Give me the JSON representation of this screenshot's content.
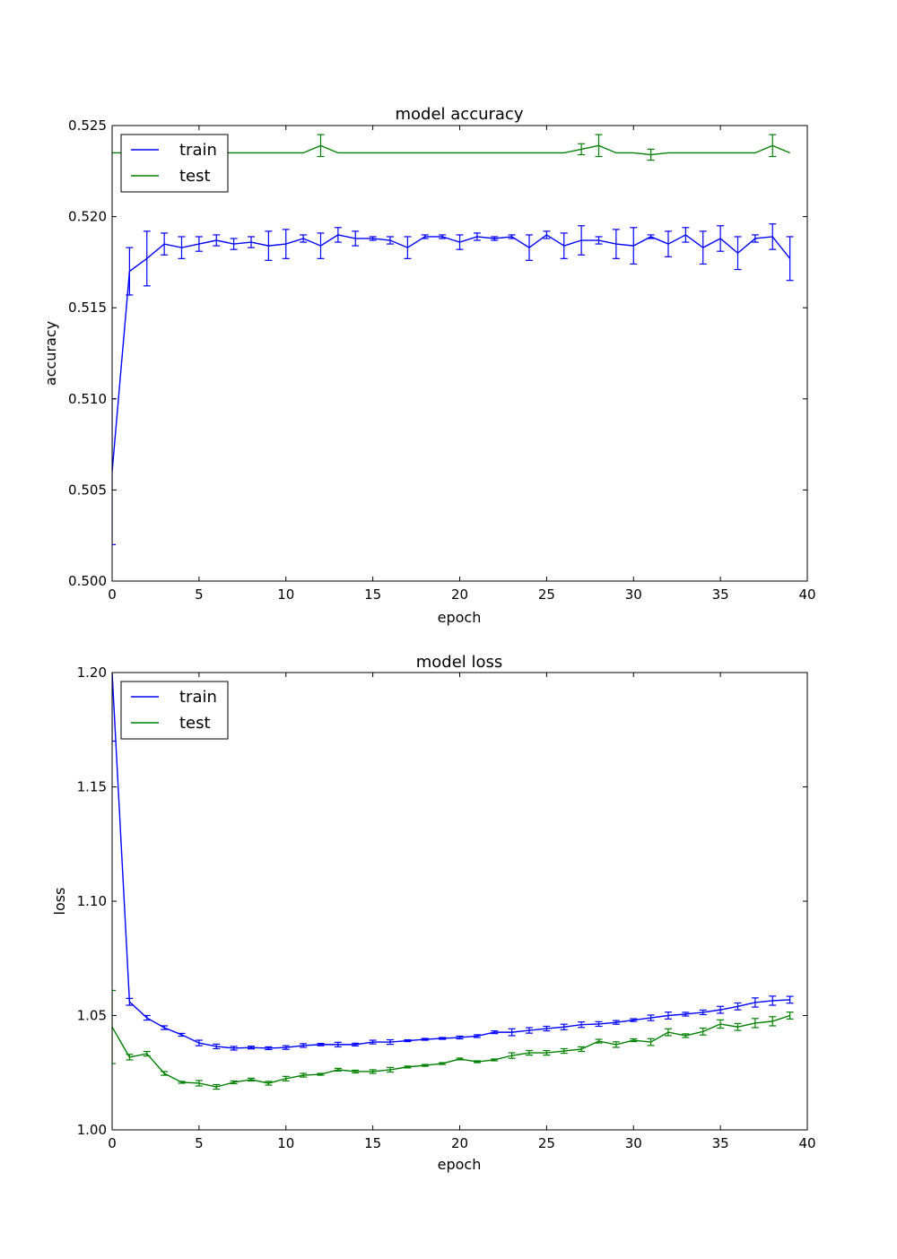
{
  "chart_data": [
    {
      "type": "line",
      "title": "model accuracy",
      "xlabel": "epoch",
      "ylabel": "accuracy",
      "xlim": [
        0,
        40
      ],
      "ylim": [
        0.5,
        0.525
      ],
      "xticks": [
        0,
        5,
        10,
        15,
        20,
        25,
        30,
        35,
        40
      ],
      "yticks": [
        0.5,
        0.505,
        0.51,
        0.515,
        0.52,
        0.525
      ],
      "ytick_labels": [
        "0.500",
        "0.505",
        "0.510",
        "0.515",
        "0.520",
        "0.525"
      ],
      "grid": false,
      "legend_position": "top-left",
      "error_bars": true,
      "series": [
        {
          "name": "train",
          "color": "#0000ff",
          "x": [
            0,
            1,
            2,
            3,
            4,
            5,
            6,
            7,
            8,
            9,
            10,
            11,
            12,
            13,
            14,
            15,
            16,
            17,
            18,
            19,
            20,
            21,
            22,
            23,
            24,
            25,
            26,
            27,
            28,
            29,
            30,
            31,
            32,
            33,
            34,
            35,
            36,
            37,
            38,
            39
          ],
          "values": [
            0.506,
            0.517,
            0.5177,
            0.5185,
            0.5183,
            0.5185,
            0.5187,
            0.5185,
            0.5186,
            0.5184,
            0.5185,
            0.5188,
            0.5184,
            0.519,
            0.5188,
            0.5188,
            0.5187,
            0.5183,
            0.5189,
            0.5189,
            0.5186,
            0.5189,
            0.5188,
            0.5189,
            0.5183,
            0.519,
            0.5184,
            0.5187,
            0.5187,
            0.5185,
            0.5184,
            0.5189,
            0.5185,
            0.519,
            0.5183,
            0.5188,
            0.518,
            0.5188,
            0.5189,
            0.5177
          ],
          "errors": [
            0.004,
            0.0013,
            0.0015,
            0.0006,
            0.0006,
            0.0004,
            0.0003,
            0.0003,
            0.0003,
            0.0008,
            0.0008,
            0.0002,
            0.0007,
            0.0004,
            0.0004,
            0.0001,
            0.0002,
            0.0006,
            0.0001,
            0.0001,
            0.0004,
            0.0002,
            0.0001,
            0.0001,
            0.0007,
            0.0002,
            0.0007,
            0.0008,
            0.0002,
            0.0008,
            0.001,
            0.0001,
            0.0007,
            0.0004,
            0.0009,
            0.0007,
            0.0009,
            0.0002,
            0.0007,
            0.0012
          ]
        },
        {
          "name": "test",
          "color": "#008000",
          "x": [
            0,
            1,
            2,
            3,
            4,
            5,
            6,
            7,
            8,
            9,
            10,
            11,
            12,
            13,
            14,
            15,
            16,
            17,
            18,
            19,
            20,
            21,
            22,
            23,
            24,
            25,
            26,
            27,
            28,
            29,
            30,
            31,
            32,
            33,
            34,
            35,
            36,
            37,
            38,
            39
          ],
          "values": [
            0.5235,
            0.5235,
            0.5235,
            0.5235,
            0.5235,
            0.5235,
            0.5235,
            0.5235,
            0.5235,
            0.5235,
            0.5235,
            0.5235,
            0.5239,
            0.5235,
            0.5235,
            0.5235,
            0.5235,
            0.5235,
            0.5235,
            0.5235,
            0.5235,
            0.5235,
            0.5235,
            0.5235,
            0.5235,
            0.5235,
            0.5235,
            0.5237,
            0.5239,
            0.5235,
            0.5235,
            0.5234,
            0.5235,
            0.5235,
            0.5235,
            0.5235,
            0.5235,
            0.5235,
            0.5239,
            0.5235
          ],
          "errors": [
            0,
            0,
            0,
            0,
            0,
            0,
            0,
            0,
            0,
            0,
            0,
            0,
            0.0006,
            0,
            0,
            0,
            0,
            0,
            0,
            0,
            0,
            0,
            0,
            0,
            0,
            0,
            0,
            0.0003,
            0.0006,
            0,
            0,
            0.0003,
            0,
            0,
            0,
            0,
            0,
            0,
            0.0006,
            0
          ]
        }
      ]
    },
    {
      "type": "line",
      "title": "model loss",
      "xlabel": "epoch",
      "ylabel": "loss",
      "xlim": [
        0,
        40
      ],
      "ylim": [
        1.0,
        1.2
      ],
      "xticks": [
        0,
        5,
        10,
        15,
        20,
        25,
        30,
        35,
        40
      ],
      "yticks": [
        1.0,
        1.05,
        1.1,
        1.15,
        1.2
      ],
      "ytick_labels": [
        "1.00",
        "1.05",
        "1.10",
        "1.15",
        "1.20"
      ],
      "grid": false,
      "legend_position": "top-left",
      "error_bars": true,
      "series": [
        {
          "name": "train",
          "color": "#0000ff",
          "x": [
            0,
            1,
            2,
            3,
            4,
            5,
            6,
            7,
            8,
            9,
            10,
            11,
            12,
            13,
            14,
            15,
            16,
            17,
            18,
            19,
            20,
            21,
            22,
            23,
            24,
            25,
            26,
            27,
            28,
            29,
            30,
            31,
            32,
            33,
            34,
            35,
            36,
            37,
            38,
            39
          ],
          "values": [
            1.2,
            1.056,
            1.049,
            1.0447,
            1.0416,
            1.038,
            1.0365,
            1.0357,
            1.036,
            1.0357,
            1.036,
            1.0369,
            1.0373,
            1.0373,
            1.0373,
            1.0384,
            1.0384,
            1.039,
            1.0396,
            1.04,
            1.0404,
            1.041,
            1.0427,
            1.0427,
            1.0435,
            1.0443,
            1.045,
            1.046,
            1.0463,
            1.047,
            1.048,
            1.049,
            1.05,
            1.0506,
            1.0514,
            1.0525,
            1.054,
            1.0557,
            1.0565,
            1.0569
          ],
          "errors": [
            0.03,
            0.0015,
            0.001,
            0.0008,
            0.0006,
            0.0012,
            0.001,
            0.0008,
            0.0006,
            0.0006,
            0.0008,
            0.0008,
            0.0005,
            0.001,
            0.0006,
            0.0008,
            0.001,
            0.0004,
            0.0004,
            0.0004,
            0.0006,
            0.0006,
            0.0006,
            0.0015,
            0.0012,
            0.001,
            0.0012,
            0.0012,
            0.001,
            0.0008,
            0.0006,
            0.0012,
            0.0015,
            0.0008,
            0.001,
            0.0015,
            0.0015,
            0.002,
            0.002,
            0.0015
          ]
        },
        {
          "name": "test",
          "color": "#008000",
          "x": [
            0,
            1,
            2,
            3,
            4,
            5,
            6,
            7,
            8,
            9,
            10,
            11,
            12,
            13,
            14,
            15,
            16,
            17,
            18,
            19,
            20,
            21,
            22,
            23,
            24,
            25,
            26,
            27,
            28,
            29,
            30,
            31,
            32,
            33,
            34,
            35,
            36,
            37,
            38,
            39
          ],
          "values": [
            1.045,
            1.0318,
            1.0333,
            1.0247,
            1.0208,
            1.0204,
            1.0188,
            1.0208,
            1.022,
            1.0204,
            1.0224,
            1.0239,
            1.0243,
            1.0263,
            1.0255,
            1.0255,
            1.0263,
            1.0275,
            1.0282,
            1.029,
            1.031,
            1.0298,
            1.0306,
            1.0325,
            1.0337,
            1.0337,
            1.0345,
            1.0353,
            1.0388,
            1.0373,
            1.0392,
            1.0384,
            1.0427,
            1.0412,
            1.043,
            1.0463,
            1.045,
            1.0467,
            1.0475,
            1.05
          ],
          "errors": [
            0.016,
            0.0012,
            0.001,
            0.0008,
            0.0004,
            0.0012,
            0.001,
            0.0006,
            0.0006,
            0.0008,
            0.001,
            0.0008,
            0.0004,
            0.0006,
            0.0006,
            0.0008,
            0.001,
            0.0004,
            0.0004,
            0.0004,
            0.0004,
            0.0004,
            0.0004,
            0.0012,
            0.001,
            0.001,
            0.001,
            0.001,
            0.0008,
            0.0012,
            0.0006,
            0.0015,
            0.0015,
            0.0008,
            0.0015,
            0.0018,
            0.0015,
            0.002,
            0.002,
            0.0015
          ]
        }
      ]
    }
  ]
}
